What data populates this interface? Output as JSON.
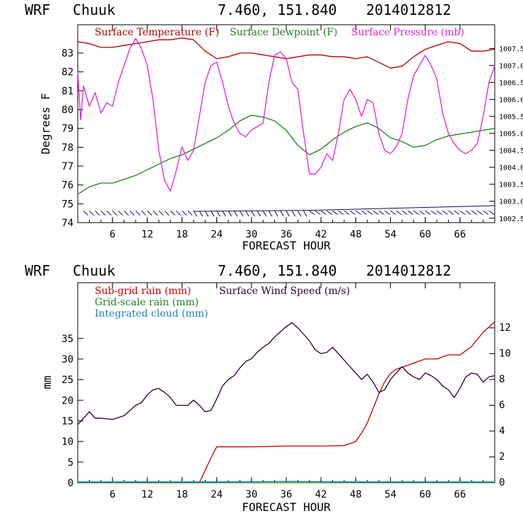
{
  "panels": [
    {
      "header": {
        "model": "WRF",
        "station": "Chuuk",
        "coords": "7.460, 151.840",
        "init": "2014012812"
      },
      "chart_data": {
        "type": "line",
        "xlabel": "FORECAST HOUR",
        "ylabel": "Degrees F",
        "xlim": [
          0,
          72
        ],
        "ylim": [
          74,
          84.5
        ],
        "y2lim": [
          1002.37,
          1008.2
        ],
        "x_ticks": [
          "6",
          "12",
          "18",
          "24",
          "30",
          "36",
          "42",
          "48",
          "54",
          "60",
          "66"
        ],
        "y_ticks": [
          "74",
          "75",
          "76",
          "77",
          "78",
          "79",
          "80",
          "81",
          "82",
          "83"
        ],
        "y2_ticks": [
          "1002.5",
          "1003.0",
          "1003.5",
          "1004.0",
          "1004.5",
          "1005.0",
          "1005.5",
          "1006.0",
          "1006.5",
          "1007.0",
          "1007.5"
        ],
        "series": [
          {
            "name": "Surface Temperature (F)",
            "axis": "left",
            "color": "#b00000",
            "x": [
              0,
              2,
              4,
              6,
              8,
              10,
              12,
              14,
              16,
              18,
              20,
              22,
              24,
              26,
              28,
              30,
              32,
              34,
              36,
              38,
              40,
              42,
              44,
              46,
              48,
              50,
              52,
              54,
              56,
              58,
              60,
              62,
              64,
              66,
              68,
              70,
              72
            ],
            "y": [
              83.6,
              83.5,
              83.3,
              83.3,
              83.4,
              83.5,
              83.6,
              83.7,
              83.7,
              83.8,
              83.7,
              83.1,
              82.7,
              82.8,
              83.0,
              83.0,
              82.9,
              82.8,
              82.7,
              82.8,
              82.9,
              82.9,
              82.8,
              82.8,
              82.7,
              82.8,
              82.5,
              82.2,
              82.3,
              82.8,
              83.2,
              83.4,
              83.6,
              83.5,
              83.1,
              83.1,
              83.2
            ]
          },
          {
            "name": "Surface Dewpoint (F)",
            "axis": "left",
            "color": "#208020",
            "x": [
              0,
              2,
              4,
              6,
              8,
              10,
              12,
              14,
              16,
              18,
              20,
              22,
              24,
              26,
              28,
              30,
              32,
              34,
              36,
              38,
              40,
              42,
              44,
              46,
              48,
              50,
              52,
              54,
              56,
              58,
              60,
              62,
              64,
              66,
              68,
              70,
              72
            ],
            "y": [
              75.5,
              75.9,
              76.1,
              76.1,
              76.3,
              76.5,
              76.8,
              77.1,
              77.4,
              77.6,
              77.9,
              78.2,
              78.5,
              78.9,
              79.4,
              79.7,
              79.6,
              79.4,
              78.9,
              78.1,
              77.6,
              77.9,
              78.4,
              78.8,
              79.1,
              79.3,
              79.0,
              78.5,
              78.3,
              78.0,
              78.1,
              78.4,
              78.6,
              78.7,
              78.8,
              78.9,
              79.0
            ]
          },
          {
            "name": "Surface Pressure (mb)",
            "axis": "right",
            "color": "#e020e0",
            "x": [
              0,
              0.5,
              1,
              2,
              3,
              4,
              5,
              6,
              7,
              8,
              9,
              10,
              11,
              12,
              13,
              14,
              15,
              16,
              17,
              18,
              19,
              20,
              21,
              22,
              23,
              24,
              25,
              26,
              27,
              28,
              29,
              30,
              31,
              32,
              33,
              34,
              35,
              36,
              37,
              38,
              39,
              40,
              41,
              42,
              43,
              44,
              45,
              46,
              47,
              48,
              49,
              50,
              51,
              52,
              53,
              54,
              55,
              56,
              57,
              58,
              59,
              60,
              61,
              62,
              63,
              64,
              65,
              66,
              67,
              68,
              69,
              70,
              71,
              72
            ],
            "y": [
              1006.8,
              1005.4,
              1006.4,
              1005.8,
              1006.2,
              1005.6,
              1005.9,
              1005.8,
              1006.5,
              1007.0,
              1007.5,
              1007.8,
              1007.5,
              1007.0,
              1006.0,
              1004.5,
              1003.6,
              1003.3,
              1003.9,
              1004.6,
              1004.2,
              1004.5,
              1005.5,
              1006.5,
              1007.0,
              1007.1,
              1006.5,
              1005.8,
              1005.3,
              1005.0,
              1004.9,
              1005.1,
              1005.2,
              1005.3,
              1006.5,
              1007.3,
              1007.4,
              1007.2,
              1006.5,
              1006.3,
              1005.0,
              1003.8,
              1003.8,
              1004.0,
              1004.4,
              1004.2,
              1005.0,
              1006.0,
              1006.3,
              1006.0,
              1005.5,
              1006.0,
              1005.9,
              1005.0,
              1004.5,
              1004.4,
              1004.6,
              1005.0,
              1006.0,
              1006.7,
              1007.0,
              1007.3,
              1007.0,
              1006.6,
              1005.6,
              1005.0,
              1004.7,
              1004.5,
              1004.4,
              1004.5,
              1004.7,
              1005.5,
              1006.5,
              1007.0
            ]
          }
        ]
      }
    },
    {
      "header": {
        "model": "WRF",
        "station": "Chuuk",
        "coords": "7.460, 151.840",
        "init": "2014012812"
      },
      "chart_data": {
        "type": "line",
        "xlabel": "FORECAST HOUR",
        "ylabel": "mm",
        "xlim": [
          0,
          72
        ],
        "ylim": [
          0,
          48.5
        ],
        "y2lim": [
          0,
          15.5
        ],
        "x_ticks": [
          "6",
          "12",
          "18",
          "24",
          "30",
          "36",
          "42",
          "48",
          "54",
          "60",
          "66"
        ],
        "y_ticks": [
          "0",
          "5",
          "10",
          "15",
          "20",
          "25",
          "30",
          "35"
        ],
        "y2_ticks": [
          "0",
          "2",
          "4",
          "6",
          "8",
          "10",
          "12"
        ],
        "series": [
          {
            "name": "Sub-grid rain (mm)",
            "axis": "left",
            "color": "#c00000",
            "x": [
              0,
              21,
              23,
              24,
              30,
              36,
              42,
              46,
              47,
              48,
              49,
              50,
              51,
              52,
              53,
              54,
              55,
              56,
              57,
              58,
              60,
              62,
              64,
              66,
              67,
              68,
              70,
              72
            ],
            "y": [
              0,
              0,
              6,
              8.7,
              8.7,
              8.9,
              8.9,
              9.0,
              9.5,
              10.0,
              12.0,
              14.5,
              18.0,
              21.5,
              24.5,
              26.5,
              27.5,
              28.0,
              28.5,
              29.0,
              30.0,
              30.0,
              31.0,
              31.0,
              32.0,
              33.0,
              36.5,
              39.0
            ]
          },
          {
            "name": "Grid-scale rain (mm)",
            "axis": "left",
            "color": "#208020",
            "x": [
              0,
              72
            ],
            "y": [
              0,
              0
            ]
          },
          {
            "name": "Integrated cloud (mm)",
            "axis": "left",
            "color": "#2080c0",
            "x": [
              0,
              12,
              24,
              36,
              48,
              60,
              72
            ],
            "y": [
              0.2,
              0.2,
              0.2,
              0.3,
              0.2,
              0.2,
              0.2
            ]
          },
          {
            "name": "Surface Wind Speed (m/s)",
            "axis": "right",
            "color": "#2a0030",
            "x": [
              0,
              1,
              2,
              3,
              4,
              6,
              8,
              10,
              11,
              12,
              13,
              14,
              15,
              16,
              17,
              18,
              19,
              20,
              21,
              22,
              23,
              24,
              25,
              26,
              27,
              28,
              29,
              30,
              31,
              32,
              33,
              34,
              35,
              36,
              37,
              38,
              39,
              40,
              41,
              42,
              43,
              44,
              45,
              46,
              47,
              48,
              49,
              50,
              51,
              52,
              53,
              54,
              55,
              56,
              57,
              58,
              59,
              60,
              61,
              62,
              63,
              64,
              65,
              66,
              67,
              68,
              69,
              70,
              71,
              72
            ],
            "y": [
              4.5,
              5.0,
              5.5,
              5.0,
              5.0,
              4.9,
              5.2,
              6.0,
              6.2,
              6.8,
              7.2,
              7.3,
              7.0,
              6.6,
              6.0,
              6.0,
              6.0,
              6.4,
              6.0,
              5.5,
              5.6,
              6.5,
              7.5,
              8.0,
              8.3,
              8.9,
              9.4,
              9.6,
              10.1,
              10.5,
              10.8,
              11.3,
              11.7,
              12.1,
              12.4,
              12.0,
              11.5,
              11.0,
              10.3,
              10.0,
              10.1,
              10.5,
              10.0,
              9.5,
              9.0,
              8.5,
              8.0,
              8.4,
              7.8,
              7.0,
              7.2,
              8.0,
              8.5,
              9.0,
              8.5,
              8.2,
              8.0,
              8.5,
              8.3,
              8.0,
              7.5,
              7.2,
              6.6,
              7.3,
              8.2,
              8.5,
              8.4,
              7.8,
              8.2,
              8.3
            ]
          }
        ]
      }
    }
  ]
}
